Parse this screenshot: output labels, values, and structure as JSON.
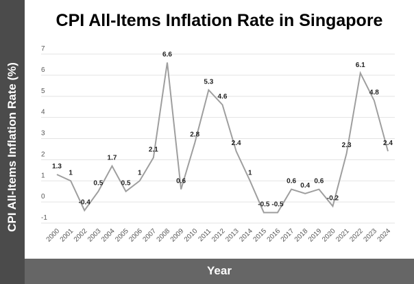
{
  "chart_data": {
    "type": "line",
    "title": "CPI All-Items Inflation Rate in Singapore",
    "xlabel": "Year",
    "ylabel": "CPI All-Items Inflation Rate (%)",
    "ylim": [
      -1,
      7
    ],
    "yticks": [
      -1,
      0,
      1,
      2,
      3,
      4,
      5,
      6,
      7
    ],
    "grid": true,
    "line_color": "#9e9e9e",
    "categories": [
      "2000",
      "2001",
      "2002",
      "2003",
      "2004",
      "2005",
      "2006",
      "2007",
      "2008",
      "2009",
      "2010",
      "2011",
      "2012",
      "2013",
      "2014",
      "2015",
      "2016",
      "2017",
      "2018",
      "2019",
      "2020",
      "2021",
      "2022",
      "2023",
      "2024"
    ],
    "values": [
      1.3,
      1,
      -0.4,
      0.5,
      1.7,
      0.5,
      1,
      2.1,
      6.6,
      0.6,
      2.8,
      5.3,
      4.6,
      2.4,
      1,
      -0.5,
      -0.5,
      0.6,
      0.4,
      0.6,
      -0.2,
      2.3,
      6.1,
      4.8,
      2.4
    ]
  }
}
